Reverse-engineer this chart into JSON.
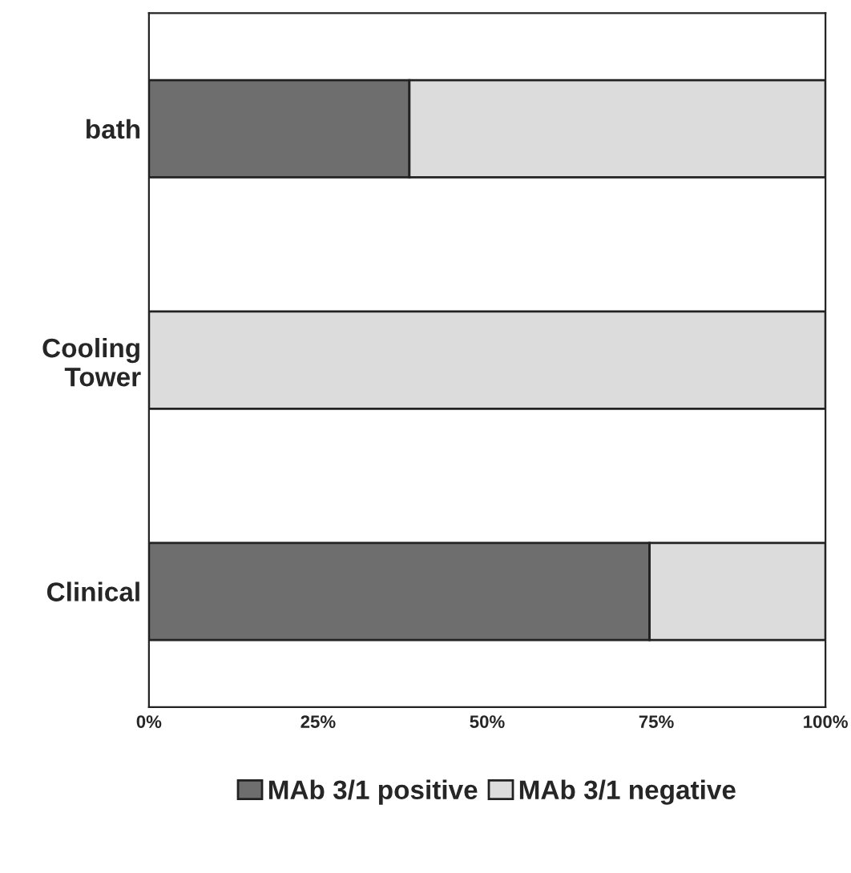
{
  "chart_data": {
    "type": "bar",
    "orientation": "horizontal",
    "stacked": true,
    "categories": [
      "bath",
      "Cooling Tower",
      "Clinical"
    ],
    "series": [
      {
        "name": "MAb 3/1 positive",
        "color": "#6e6e6e",
        "values": [
          38.5,
          0,
          74
        ]
      },
      {
        "name": "MAb 3/1 negative",
        "color": "#dcdcdc",
        "values": [
          61.5,
          100,
          26
        ]
      }
    ],
    "xlim": [
      0,
      100
    ],
    "xticks": [
      {
        "value": 0,
        "label": "0%"
      },
      {
        "value": 25,
        "label": "25%"
      },
      {
        "value": 50,
        "label": "50%"
      },
      {
        "value": 75,
        "label": "75%"
      },
      {
        "value": 100,
        "label": "100%"
      }
    ],
    "legend": "bottom",
    "grid": false
  }
}
